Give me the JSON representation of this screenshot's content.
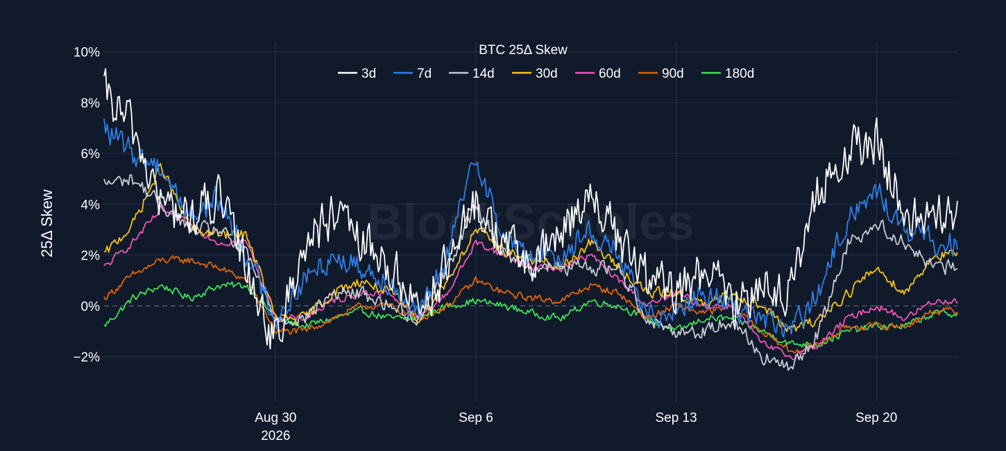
{
  "watermark": "BlockScholes",
  "chart_data": {
    "type": "line",
    "title": "BTC 25Δ Skew",
    "ylabel": "25Δ Skew",
    "xlabel": "",
    "x_ticks": [
      {
        "date": "2026-08-30",
        "label": "Aug 30",
        "sublabel": "2026"
      },
      {
        "date": "2026-09-06",
        "label": "Sep 6",
        "sublabel": ""
      },
      {
        "date": "2026-09-13",
        "label": "Sep 13",
        "sublabel": ""
      },
      {
        "date": "2026-09-20",
        "label": "Sep 20",
        "sublabel": ""
      }
    ],
    "xlim": [
      "2026-08-24T00:00",
      "2026-09-22T20:00"
    ],
    "ylim": [
      -3.8,
      10.4
    ],
    "y_ticks": [
      {
        "value": -2,
        "label": "−2%"
      },
      {
        "value": 0,
        "label": "0%"
      },
      {
        "value": 2,
        "label": "2%"
      },
      {
        "value": 4,
        "label": "4%"
      },
      {
        "value": 6,
        "label": "6%"
      },
      {
        "value": 8,
        "label": "8%"
      },
      {
        "value": 10,
        "label": "10%"
      }
    ],
    "legend_position": "top-center",
    "grid": true,
    "zero_line": "dashed",
    "x_dates": [
      "2026-08-24",
      "2026-08-25",
      "2026-08-26",
      "2026-08-27",
      "2026-08-28",
      "2026-08-29",
      "2026-08-30",
      "2026-08-31",
      "2026-09-01",
      "2026-09-02",
      "2026-09-03",
      "2026-09-04",
      "2026-09-05",
      "2026-09-06",
      "2026-09-07",
      "2026-09-08",
      "2026-09-09",
      "2026-09-10",
      "2026-09-11",
      "2026-09-12",
      "2026-09-13",
      "2026-09-14",
      "2026-09-15",
      "2026-09-16",
      "2026-09-17",
      "2026-09-18",
      "2026-09-19",
      "2026-09-20",
      "2026-09-21",
      "2026-09-22"
    ],
    "series": [
      {
        "name": "3d",
        "color": "#ffffff",
        "noise": 1.3,
        "values": [
          8.3,
          7.0,
          4.0,
          3.5,
          4.2,
          1.5,
          -1.5,
          2.5,
          3.5,
          2.5,
          1.5,
          0.0,
          1.5,
          4.0,
          2.5,
          1.5,
          3.0,
          4.5,
          2.5,
          1.0,
          0.5,
          1.5,
          0.0,
          1.0,
          0.5,
          4.5,
          6.0,
          6.5,
          3.5,
          3.5
        ]
      },
      {
        "name": "7d",
        "color": "#2f7fe8",
        "noise": 0.7,
        "values": [
          7.0,
          6.0,
          5.5,
          3.5,
          4.2,
          2.0,
          -0.5,
          1.0,
          2.0,
          1.5,
          1.0,
          -0.5,
          2.0,
          6.0,
          2.5,
          2.0,
          2.0,
          3.0,
          2.0,
          -0.5,
          0.0,
          0.5,
          0.0,
          -0.5,
          -1.0,
          0.5,
          3.5,
          4.5,
          3.0,
          2.5
        ]
      },
      {
        "name": "14d",
        "color": "#c8ccd4",
        "noise": 0.4,
        "values": [
          4.8,
          5.0,
          4.0,
          3.0,
          3.0,
          2.0,
          -0.5,
          -0.5,
          0.5,
          0.5,
          0.0,
          -0.5,
          1.5,
          4.0,
          2.0,
          1.5,
          1.5,
          1.5,
          1.5,
          -0.5,
          -1.0,
          -1.0,
          -0.5,
          -2.0,
          -2.5,
          -1.0,
          2.5,
          3.2,
          2.5,
          1.5
        ]
      },
      {
        "name": "30d",
        "color": "#f5c518",
        "noise": 0.3,
        "values": [
          2.0,
          3.2,
          5.5,
          3.0,
          2.8,
          2.8,
          -0.5,
          -0.5,
          0.5,
          1.0,
          0.5,
          -0.5,
          1.0,
          3.0,
          2.2,
          1.8,
          1.5,
          2.5,
          1.5,
          0.5,
          0.5,
          0.0,
          0.5,
          0.0,
          -1.0,
          -0.5,
          0.5,
          1.5,
          0.5,
          2.0
        ]
      },
      {
        "name": "60d",
        "color": "#f055b8",
        "noise": 0.2,
        "values": [
          1.5,
          2.5,
          3.8,
          3.2,
          2.5,
          2.5,
          -0.5,
          -0.5,
          0.2,
          0.5,
          0.5,
          -0.5,
          0.5,
          2.5,
          2.0,
          1.5,
          1.5,
          2.0,
          1.0,
          0.0,
          0.5,
          0.0,
          0.0,
          -1.5,
          -2.0,
          -1.5,
          -0.5,
          0.0,
          -0.5,
          0.2
        ]
      },
      {
        "name": "90d",
        "color": "#e0660a",
        "noise": 0.2,
        "values": [
          0.3,
          1.2,
          1.8,
          1.8,
          1.5,
          1.0,
          -1.0,
          -1.0,
          -0.5,
          0.0,
          0.0,
          -0.5,
          0.0,
          1.0,
          0.5,
          0.3,
          0.2,
          0.8,
          0.5,
          -0.5,
          0.0,
          -0.3,
          0.0,
          -1.0,
          -1.8,
          -1.5,
          -0.8,
          -0.8,
          -0.8,
          -0.2
        ]
      },
      {
        "name": "180d",
        "color": "#3fe05a",
        "noise": 0.2,
        "values": [
          -0.8,
          0.3,
          0.8,
          0.3,
          0.8,
          0.8,
          -0.5,
          -0.8,
          -0.5,
          -0.2,
          -0.5,
          -0.5,
          0.0,
          0.2,
          0.0,
          -0.3,
          -0.5,
          0.2,
          0.0,
          -0.5,
          -1.0,
          -0.5,
          -0.5,
          -1.0,
          -1.5,
          -1.5,
          -1.0,
          -0.8,
          -0.8,
          -0.3
        ]
      }
    ]
  }
}
